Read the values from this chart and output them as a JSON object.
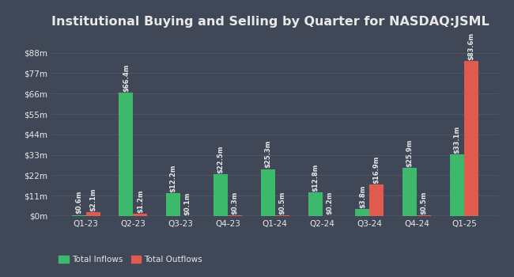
{
  "title": "Institutional Buying and Selling by Quarter for NASDAQ:JSML",
  "quarters": [
    "Q1-23",
    "Q2-23",
    "Q3-23",
    "Q4-23",
    "Q1-24",
    "Q2-24",
    "Q3-24",
    "Q4-24",
    "Q1-25"
  ],
  "inflows": [
    0.6,
    66.4,
    12.2,
    22.5,
    25.3,
    12.8,
    3.8,
    25.9,
    33.1
  ],
  "outflows": [
    2.1,
    1.2,
    0.1,
    0.3,
    0.5,
    0.2,
    16.9,
    0.5,
    83.6
  ],
  "inflow_labels": [
    "$0.6m",
    "$66.4m",
    "$12.2m",
    "$22.5m",
    "$25.3m",
    "$12.8m",
    "$3.8m",
    "$25.9m",
    "$33.1m"
  ],
  "outflow_labels": [
    "$2.1m",
    "$1.2m",
    "$0.1m",
    "$0.3m",
    "$0.5m",
    "$0.2m",
    "$16.9m",
    "$0.5m",
    "$83.6m"
  ],
  "inflow_color": "#3cb96a",
  "outflow_color": "#e05a4e",
  "background_color": "#404858",
  "text_color": "#e8e8e8",
  "grid_color": "#4e5666",
  "yticks": [
    0,
    11,
    22,
    33,
    44,
    55,
    66,
    77,
    88
  ],
  "ytick_labels": [
    "$0m",
    "$11m",
    "$22m",
    "$33m",
    "$44m",
    "$55m",
    "$66m",
    "$77m",
    "$88m"
  ],
  "ylim": [
    0,
    97
  ],
  "bar_width": 0.3,
  "legend_inflow": "Total Inflows",
  "legend_outflow": "Total Outflows",
  "title_fontsize": 11.5,
  "label_fontsize": 6.0,
  "tick_fontsize": 7.5,
  "legend_fontsize": 7.5
}
